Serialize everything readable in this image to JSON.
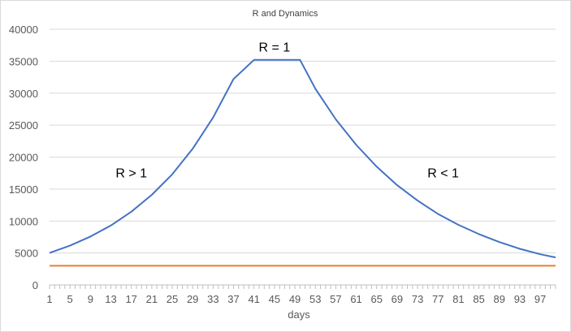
{
  "chart_data": {
    "type": "line",
    "title": "R and Dynamics",
    "xlabel": "days",
    "ylabel": "",
    "ylim": [
      0,
      40000
    ],
    "yticks": [
      0,
      5000,
      10000,
      15000,
      20000,
      25000,
      30000,
      35000,
      40000
    ],
    "xlim": [
      1,
      100
    ],
    "xticks": [
      1,
      5,
      9,
      13,
      17,
      21,
      25,
      29,
      33,
      37,
      41,
      45,
      49,
      53,
      57,
      61,
      65,
      69,
      73,
      77,
      81,
      85,
      89,
      93,
      97
    ],
    "grid": true,
    "legend": "none",
    "annotations": [
      {
        "text": "R > 1",
        "x": 17,
        "y": 16800
      },
      {
        "text": "R = 1",
        "x": 45,
        "y": 36500
      },
      {
        "text": "R < 1",
        "x": 78,
        "y": 16800
      }
    ],
    "series": [
      {
        "color": "#4472c4",
        "x": [
          1,
          5,
          9,
          13,
          17,
          21,
          25,
          29,
          33,
          37,
          41,
          45,
          50,
          53,
          57,
          61,
          65,
          69,
          73,
          77,
          81,
          85,
          89,
          93,
          97,
          100
        ],
        "y": [
          5000,
          6150,
          7570,
          9300,
          11450,
          14100,
          17300,
          21300,
          26200,
          32200,
          35200,
          35200,
          35200,
          30700,
          25900,
          21900,
          18500,
          15600,
          13200,
          11100,
          9400,
          7950,
          6700,
          5650,
          4800,
          4300
        ]
      },
      {
        "color": "#ed7d31",
        "x": [
          1,
          100
        ],
        "y": [
          3000,
          3000
        ]
      }
    ]
  }
}
